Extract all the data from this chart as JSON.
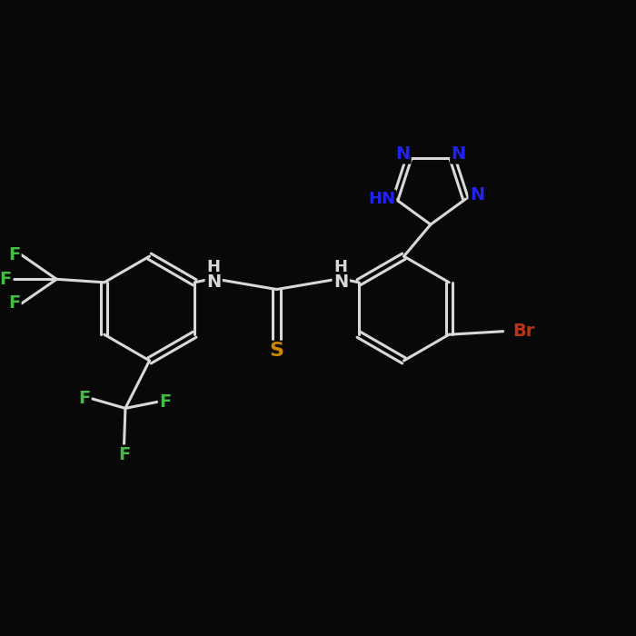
{
  "bg_color": "#080808",
  "bond_color": "#d8d8d8",
  "bond_width": 2.2,
  "N_color": "#2222ee",
  "S_color": "#cc8800",
  "F_color": "#44bb44",
  "Br_color": "#bb3311",
  "font_size": 14,
  "xlim": [
    0,
    10
  ],
  "ylim": [
    0,
    10
  ]
}
